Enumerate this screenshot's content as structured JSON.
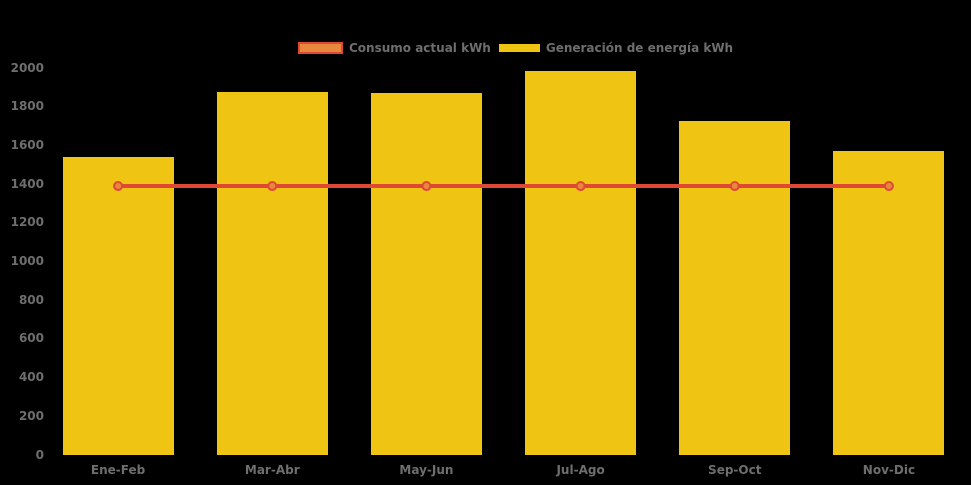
{
  "canvas": {
    "background": "#000000",
    "label_color": "#6e6e6e"
  },
  "legend": {
    "items": [
      {
        "label": "Consumo actual kWh",
        "swatch_fill": "#e8883c",
        "swatch_border": "#e04836"
      },
      {
        "label": "Generación de energía kWh",
        "swatch_fill": "#f0c413",
        "swatch_border": "#f0c413"
      }
    ]
  },
  "chart_data": {
    "type": "bar",
    "title": "",
    "xlabel": "",
    "ylabel": "",
    "categories": [
      "Ene-Feb",
      "Mar-Abr",
      "May-Jun",
      "Jul-Ago",
      "Sep-Oct",
      "Nov-Dic"
    ],
    "series": [
      {
        "name": "Generación de energía kWh",
        "type": "bar",
        "color": "#f0c413",
        "values": [
          1540,
          1875,
          1870,
          1985,
          1725,
          1570
        ]
      },
      {
        "name": "Consumo actual kWh",
        "type": "line",
        "color": "#e04836",
        "marker_fill": "#e8883c",
        "marker_stroke": "#e04836",
        "values": [
          1390,
          1390,
          1390,
          1390,
          1390,
          1390
        ]
      }
    ],
    "ylim": [
      0,
      2000
    ],
    "ytick_step": 200,
    "yticks": [
      "0",
      "200",
      "400",
      "600",
      "800",
      "1000",
      "1200",
      "1400",
      "1600",
      "1800",
      "2000"
    ],
    "grid": false,
    "legend_position": "top",
    "axis_lines": false
  }
}
